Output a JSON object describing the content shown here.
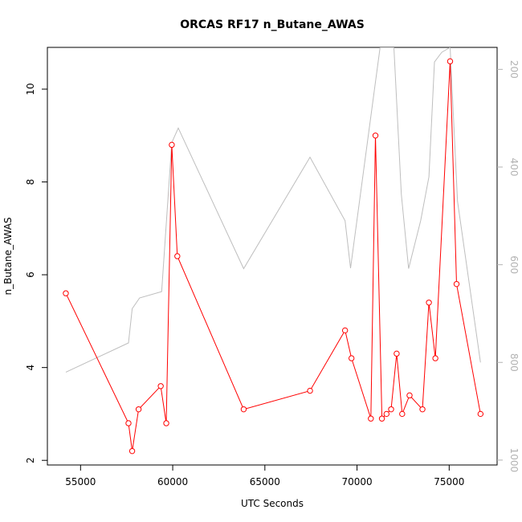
{
  "chart_data": {
    "type": "line",
    "title": "ORCAS RF17 n_Butane_AWAS",
    "xlabel": "UTC Seconds",
    "ylabel": "n_Butane_AWAS",
    "xlim": [
      53200,
      77600
    ],
    "ylim": [
      1.9,
      10.9
    ],
    "y2lim": [
      1010,
      155
    ],
    "y2_reversed": true,
    "grid": false,
    "x_ticks": [
      55000,
      60000,
      65000,
      70000,
      75000
    ],
    "y_ticks": [
      2,
      4,
      6,
      8,
      10
    ],
    "y2_ticks": [
      200,
      400,
      600,
      800,
      1000
    ],
    "series": [
      {
        "color": "#ff0000",
        "marker": "open-circle",
        "axis": "left",
        "x": [
          54200,
          57600,
          57800,
          58150,
          59350,
          59650,
          59950,
          60250,
          63850,
          67450,
          69350,
          69700,
          70750,
          71000,
          71350,
          71600,
          71850,
          72150,
          72450,
          72850,
          73550,
          73900,
          74250,
          75050,
          75400,
          76700
        ],
        "y": [
          5.6,
          2.8,
          2.2,
          3.1,
          3.6,
          2.8,
          8.8,
          6.4,
          3.1,
          3.5,
          4.8,
          4.2,
          2.9,
          9.0,
          2.9,
          3.0,
          3.1,
          4.3,
          3.0,
          3.4,
          3.1,
          5.4,
          4.2,
          10.6,
          5.8,
          3.0
        ]
      },
      {
        "color": "#bebebe",
        "marker": "none",
        "axis": "right",
        "x": [
          54200,
          57600,
          57800,
          58200,
          59400,
          59950,
          60300,
          63850,
          67450,
          69350,
          69650,
          71250,
          71650,
          72000,
          72400,
          72800,
          73450,
          73900,
          74200,
          74600,
          75050,
          75450,
          76700
        ],
        "y": [
          820,
          760,
          690,
          668,
          655,
          350,
          320,
          608,
          380,
          510,
          607,
          155,
          155,
          155,
          455,
          608,
          510,
          420,
          185,
          165,
          155,
          470,
          800
        ]
      }
    ]
  }
}
